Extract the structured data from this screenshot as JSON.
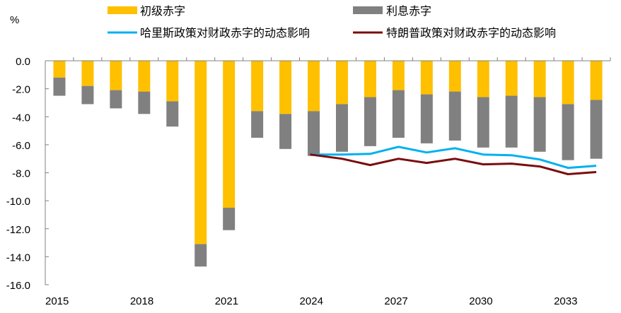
{
  "chart_data": {
    "type": "bar",
    "stacked": true,
    "title": "",
    "ylabel": "%",
    "xlabel": "",
    "ylim": [
      -16.0,
      0.0
    ],
    "yticks": [
      0.0,
      -2.0,
      -4.0,
      -6.0,
      -8.0,
      -10.0,
      -12.0,
      -14.0,
      -16.0
    ],
    "ytick_labels": [
      "0.0",
      "-2.0",
      "-4.0",
      "-6.0",
      "-8.0",
      "-10.0",
      "-12.0",
      "-14.0",
      "-16.0"
    ],
    "grid": false,
    "legend_position": "top",
    "categories": [
      "2015",
      "2016",
      "2017",
      "2018",
      "2019",
      "2020",
      "2021",
      "2022",
      "2023",
      "2024",
      "2025",
      "2026",
      "2027",
      "2028",
      "2029",
      "2030",
      "2031",
      "2032",
      "2033",
      "2034"
    ],
    "xtick_labels": [
      "2015",
      "",
      "",
      "2018",
      "",
      "",
      "2021",
      "",
      "",
      "2024",
      "",
      "",
      "2027",
      "",
      "",
      "2030",
      "",
      "",
      "2033",
      ""
    ],
    "series": [
      {
        "name": "初级赤字",
        "kind": "bar",
        "color": "#FFC000",
        "values": [
          -1.2,
          -1.8,
          -2.1,
          -2.2,
          -2.9,
          -13.1,
          -10.5,
          -3.6,
          -3.8,
          -3.6,
          -3.1,
          -2.6,
          -2.1,
          -2.4,
          -2.2,
          -2.6,
          -2.5,
          -2.6,
          -3.1,
          -2.8
        ]
      },
      {
        "name": "利息赤字",
        "kind": "bar",
        "color": "#808080",
        "values": [
          -1.3,
          -1.3,
          -1.3,
          -1.6,
          -1.8,
          -1.6,
          -1.6,
          -1.9,
          -2.5,
          -3.2,
          -3.4,
          -3.5,
          -3.4,
          -3.5,
          -3.5,
          -3.6,
          -3.7,
          -3.9,
          -4.0,
          -4.2
        ]
      },
      {
        "name": "哈里斯政策对财政赤字的动态影响",
        "kind": "line",
        "color": "#00B0F0",
        "values": [
          null,
          null,
          null,
          null,
          null,
          null,
          null,
          null,
          null,
          -6.7,
          -6.7,
          -6.65,
          -6.15,
          -6.55,
          -6.25,
          -6.7,
          -6.75,
          -7.05,
          -7.65,
          -7.5
        ]
      },
      {
        "name": "特朗普政策对财政赤字的动态影响",
        "kind": "line",
        "color": "#7B0C0C",
        "values": [
          null,
          null,
          null,
          null,
          null,
          null,
          null,
          null,
          null,
          -6.7,
          -7.0,
          -7.45,
          -7.0,
          -7.3,
          -7.0,
          -7.4,
          -7.35,
          -7.55,
          -8.1,
          -7.95
        ]
      }
    ]
  }
}
